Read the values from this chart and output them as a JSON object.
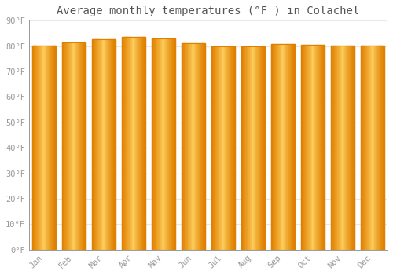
{
  "title": "Average monthly temperatures (°F ) in Colachel",
  "months": [
    "Jan",
    "Feb",
    "Mar",
    "Apr",
    "May",
    "Jun",
    "Jul",
    "Aug",
    "Sep",
    "Oct",
    "Nov",
    "Dec"
  ],
  "values": [
    80.1,
    81.3,
    82.8,
    83.7,
    83.1,
    81.0,
    79.9,
    79.9,
    80.8,
    80.4,
    80.1,
    80.1
  ],
  "bar_color_light": "#FFD060",
  "bar_color_mid": "#FFAA00",
  "bar_color_dark": "#E08000",
  "background_color": "#ffffff",
  "plot_bg_color": "#ffffff",
  "grid_color": "#e8e8e8",
  "ylim": [
    0,
    90
  ],
  "yticks": [
    0,
    10,
    20,
    30,
    40,
    50,
    60,
    70,
    80,
    90
  ],
  "ytick_labels": [
    "0°F",
    "10°F",
    "20°F",
    "30°F",
    "40°F",
    "50°F",
    "60°F",
    "70°F",
    "80°F",
    "90°F"
  ],
  "title_fontsize": 10,
  "tick_fontsize": 7.5,
  "font_color": "#999999",
  "title_color": "#555555"
}
